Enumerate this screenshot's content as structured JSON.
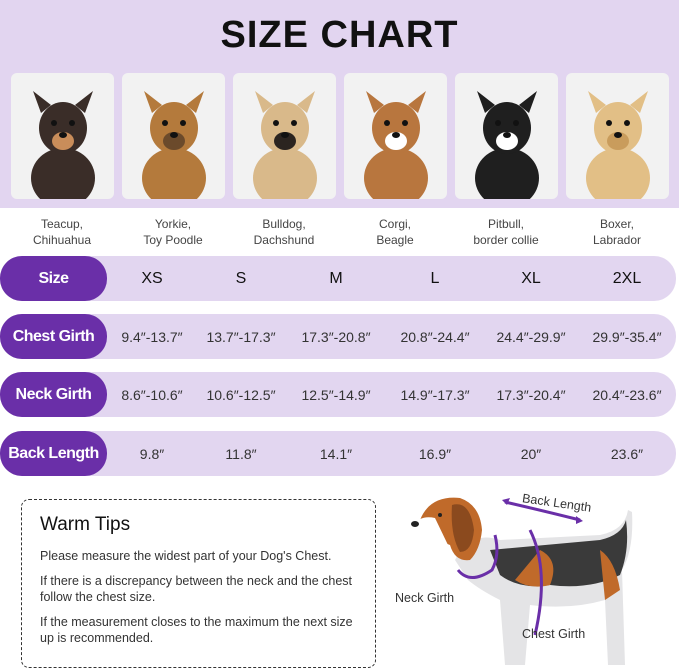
{
  "title": "SIZE CHART",
  "breeds": [
    {
      "label": "Teacup,\nChihuahua",
      "coat": "#3a2d28",
      "accent": "#c98d5a"
    },
    {
      "label": "Yorkie,\nToy Poodle",
      "coat": "#b47a3c",
      "accent": "#6b4a2b"
    },
    {
      "label": "Bulldog,\nDachshund",
      "coat": "#d9b98a",
      "accent": "#2b2420"
    },
    {
      "label": "Corgi,\nBeagle",
      "coat": "#b8763e",
      "accent": "#ffffff"
    },
    {
      "label": "Pitbull,\nborder collie",
      "coat": "#1f1f1f",
      "accent": "#ffffff"
    },
    {
      "label": "Boxer,\nLabrador",
      "coat": "#e2bf86",
      "accent": "#c99c5c"
    }
  ],
  "table": {
    "rows": [
      {
        "label": "Size",
        "values": [
          "XS",
          "S",
          "M",
          "L",
          "XL",
          "2XL"
        ]
      },
      {
        "label": "Chest Girth",
        "values": [
          "9.4″-13.7″",
          "13.7″-17.3″",
          "17.3″-20.8″",
          "20.8″-24.4″",
          "24.4″-29.9″",
          "29.9″-35.4″"
        ]
      },
      {
        "label": "Neck Girth",
        "values": [
          "8.6″-10.6″",
          "10.6″-12.5″",
          "12.5″-14.9″",
          "14.9″-17.3″",
          "17.3″-20.4″",
          "20.4″-23.6″"
        ]
      },
      {
        "label": "Back Length",
        "values": [
          "9.8″",
          "11.8″",
          "14.1″",
          "16.9″",
          "20″",
          "23.6″"
        ]
      }
    ]
  },
  "tips": {
    "title": "Warm Tips",
    "items": [
      "Please measure the widest part of your Dog's Chest.",
      "If there is a discrepancy between the neck and the chest follow the chest size.",
      "If the measurement closes to the maximum the next size up is recommended."
    ]
  },
  "diagram": {
    "back_length": "Back Length",
    "neck_girth": "Neck Girth",
    "chest_girth": "Chest Girth"
  },
  "colors": {
    "accent": "#6a2fa8",
    "band": "#e2d5f0",
    "row": "#e2d6f0"
  }
}
